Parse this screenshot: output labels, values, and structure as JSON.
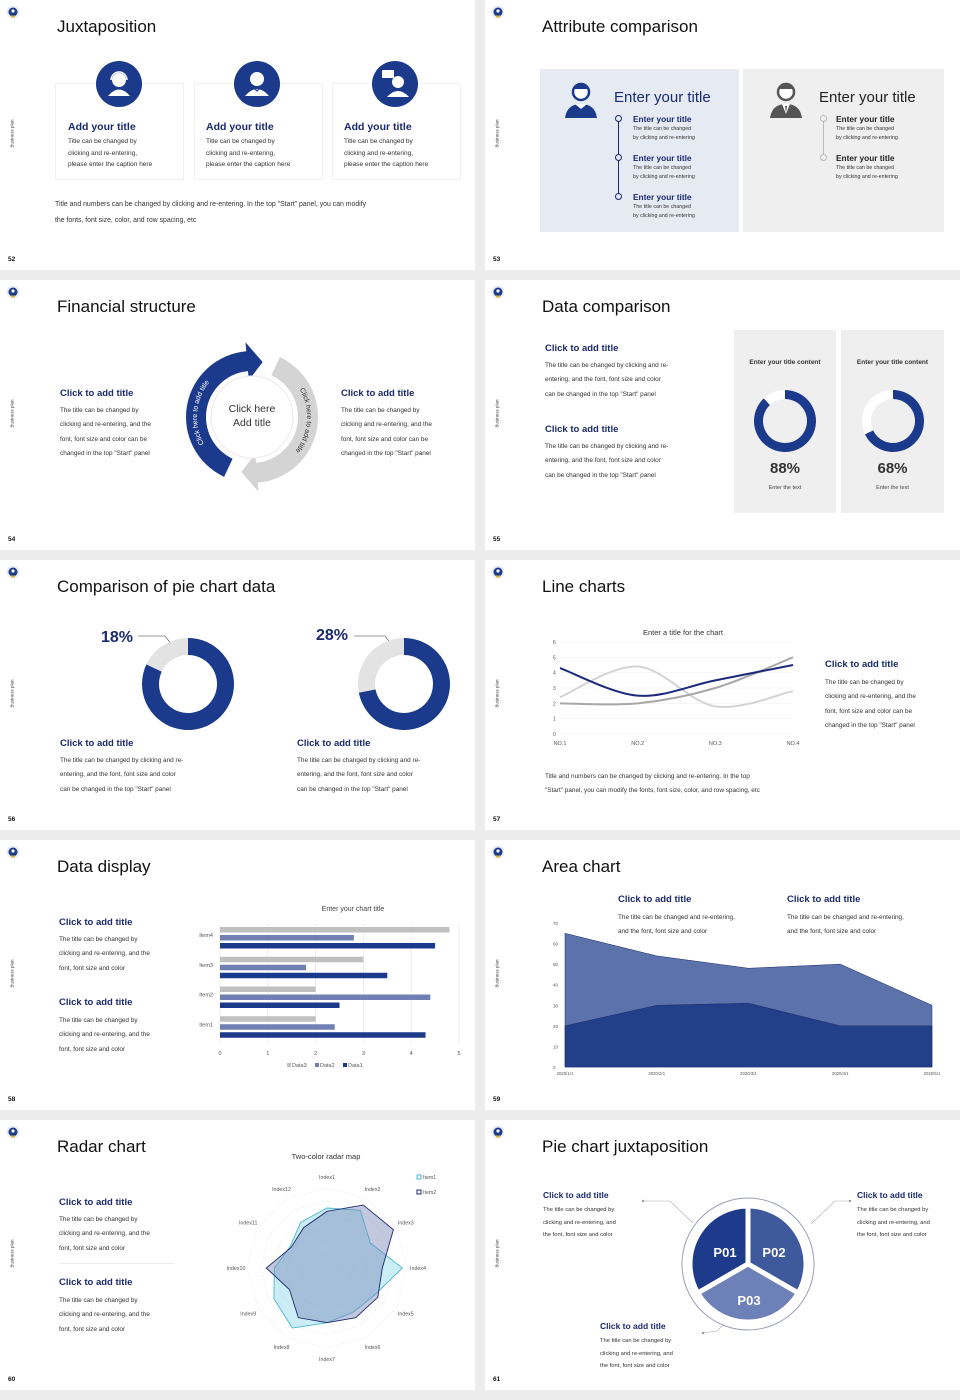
{
  "common": {
    "side_label": "Business plan"
  },
  "colors": {
    "navy": "#1b3a8c",
    "title_navy": "#1a2a6c",
    "mid_blue": "#4a63a3",
    "light_blue": "#7080b5",
    "gray": "#c8c8c8",
    "panel_blue": "#e6eaf3",
    "panel_gray": "#efefef"
  },
  "slides": {
    "s52": {
      "page": "52",
      "title": "Juxtaposition",
      "cards": [
        {
          "icon": "customer-service-icon",
          "title": "Add your title",
          "body": "Title can be changed by\nclicking and re-entering,\nplease enter the caption here"
        },
        {
          "icon": "staff-icon",
          "title": "Add your title",
          "body": "Title can be changed by\nclicking and re-entering,\nplease enter the caption here"
        },
        {
          "icon": "consultant-chat-icon",
          "title": "Add your title",
          "body": "Title can be changed by\nclicking and re-entering,\nplease enter the caption here"
        }
      ],
      "note": "Title and numbers can be changed by clicking and re-entering. In the top \"Start\" panel, you can modify\nthe fonts, font size, color, and row spacing, etc"
    },
    "s53": {
      "page": "53",
      "title": "Attribute comparison",
      "left": {
        "heading": "Enter your title",
        "items": [
          {
            "title": "Enter your title",
            "body": "The title can be changed\nby clicking and re-entering"
          },
          {
            "title": "Enter your title",
            "body": "The title can be changed\nby clicking and re-entering"
          },
          {
            "title": "Enter your title",
            "body": "The title can be changed\nby clicking and re-entering"
          }
        ]
      },
      "right": {
        "heading": "Enter your title",
        "items": [
          {
            "title": "Enter your title",
            "body": "The title can be changed\nby clicking and re-entering"
          },
          {
            "title": "Enter your title",
            "body": "The title can be changed\nby clicking and re-entering"
          }
        ]
      }
    },
    "s54": {
      "page": "54",
      "title": "Financial structure",
      "left": {
        "title": "Click to add title",
        "body": "The title can be changed by\nclicking and re-entering, and the\nfont, font size and color can be\nchanged in the top \"Start\" panel"
      },
      "right": {
        "title": "Click to add title",
        "body": "The title can be changed by\nclicking and re-entering, and the\nfont, font size and color can be\nchanged in the top \"Start\" panel"
      },
      "center": "Click here\nAdd title",
      "arc_left": "Click here to add title",
      "arc_right": "Click here to add title"
    },
    "s55": {
      "page": "55",
      "title": "Data comparison",
      "blocks": [
        {
          "title": "Click to add title",
          "body": "The title can be changed by clicking and re-\nentering, and the font, font size and color\ncan be changed in the top \"Start\" panel"
        },
        {
          "title": "Click to add title",
          "body": "The title can be changed by clicking and re-\nentering, and the font, font size and color\ncan be changed in the top \"Start\" panel"
        }
      ],
      "panels": [
        {
          "heading": "Enter your title content",
          "pct": "88%",
          "caption": "Enter the text"
        },
        {
          "heading": "Enter your title content",
          "pct": "68%",
          "caption": "Enter the text"
        }
      ]
    },
    "s56": {
      "page": "56",
      "title": "Comparison of pie chart data",
      "items": [
        {
          "pct": "18%",
          "title": "Click to add title",
          "body": "The title can be changed by clicking and re-\nentering, and the font, font size and color\ncan be changed in the top \"Start\" panel"
        },
        {
          "pct": "28%",
          "title": "Click to add title",
          "body": "The title can be changed by clicking and re-\nentering, and the font, font size and color\ncan be changed in the top \"Start\" panel"
        }
      ]
    },
    "s57": {
      "page": "57",
      "title": "Line charts",
      "side": {
        "title": "Click to add title",
        "body": "The title can be changed by\nclicking and re-entering, and the\nfont, font size and color can be\nchanged in the top \"Start\" panel"
      },
      "note": "Title and numbers can be changed by clicking and re-entering. In the top\n\"Start\" panel, you can modify the fonts, font size, color, and row spacing, etc"
    },
    "s58": {
      "page": "58",
      "title": "Data display",
      "blocks": [
        {
          "title": "Click to add title",
          "body": "The title can be changed by\nclicking and re-entering, and the\nfont, font size and color"
        },
        {
          "title": "Click to add title",
          "body": "The title can be changed by\nclicking and re-entering, and the\nfont, font size and color"
        }
      ]
    },
    "s59": {
      "page": "59",
      "title": "Area chart",
      "blocks": [
        {
          "title": "Click to add title",
          "body": "The title can be changed and re-entering,\nand the font, font size and color"
        },
        {
          "title": "Click to add title",
          "body": "The title can be changed and re-entering,\nand the font, font size and color"
        }
      ]
    },
    "s60": {
      "page": "60",
      "title": "Radar chart",
      "blocks": [
        {
          "title": "Click to add title",
          "body": "The title can be changed by\nclicking and re-entering, and the\nfont, font size and color"
        },
        {
          "title": "Click to add title",
          "body": "The title can be changed by\nclicking and re-entering, and the\nfont, font size and color"
        }
      ]
    },
    "s61": {
      "page": "61",
      "title": "Pie chart juxtaposition",
      "segments": [
        "P01",
        "P02",
        "P03"
      ],
      "blocks": [
        {
          "title": "Click to add title",
          "body": "The title can be changed by\nclicking and re-entering, and\nthe font, font size and color"
        },
        {
          "title": "Click to add title",
          "body": "The title can be changed by\nclicking and re-entering, and\nthe font, font size and color"
        },
        {
          "title": "Click to add title",
          "body": "The title can be changed by\nclicking and re-entering, and\nthe font, font size and color"
        }
      ]
    }
  },
  "chart_data": [
    {
      "type": "line",
      "title": "Enter a title for the chart",
      "categories": [
        "NO.1",
        "NO.2",
        "NO.3",
        "NO.4"
      ],
      "ylim": [
        0,
        6
      ],
      "yticks": [
        0,
        1,
        2,
        3,
        4,
        5,
        6
      ],
      "grid": true,
      "smooth": true,
      "series": [
        {
          "values": [
            4.3,
            2.5,
            3.5,
            4.5
          ],
          "color": "#1b2a7c"
        },
        {
          "values": [
            2.4,
            4.4,
            1.8,
            2.8
          ],
          "color": "#d4d4d4"
        },
        {
          "values": [
            2.0,
            2.0,
            3.0,
            5.0
          ],
          "color": "#a8a8a8"
        }
      ]
    },
    {
      "type": "bar",
      "orientation": "horizontal",
      "title": "Enter your chart title",
      "categories": [
        "Item1",
        "Item2",
        "Item3",
        "Item4"
      ],
      "xlim": [
        0,
        5
      ],
      "xticks": [
        0,
        1,
        2,
        3,
        4,
        5
      ],
      "grid": true,
      "legend": "bottom",
      "series": [
        {
          "name": "Data1",
          "values": [
            4.3,
            2.5,
            3.5,
            4.5
          ],
          "color": "#1b3a8c"
        },
        {
          "name": "Data2",
          "values": [
            2.4,
            4.4,
            1.8,
            2.8
          ],
          "color": "#7080b5"
        },
        {
          "name": "Data3",
          "values": [
            2.0,
            2.0,
            3.0,
            4.8
          ],
          "color": "#c0c0c0"
        }
      ]
    },
    {
      "type": "area",
      "categories": [
        "2020/1/1",
        "2020/2/1",
        "2020/3/1",
        "2020/4/1",
        "2020/5/1"
      ],
      "ylim": [
        0,
        70
      ],
      "yticks": [
        0,
        10,
        20,
        30,
        40,
        50,
        60,
        70
      ],
      "series": [
        {
          "values": [
            65,
            54,
            48,
            50,
            30
          ],
          "color": "#5b73aa"
        },
        {
          "values": [
            20,
            30,
            31,
            20,
            20
          ],
          "color": "#223f8a"
        }
      ]
    },
    {
      "type": "radar",
      "title": "Two-color radar map",
      "legend": "top-right",
      "categories": [
        "Index1",
        "Index2",
        "Index3",
        "Index4",
        "Index5",
        "Index6",
        "Index7",
        "Index8",
        "Index9",
        "Index10",
        "Index11",
        "Index12"
      ],
      "rmax": 12,
      "series": [
        {
          "name": "Item1",
          "values": [
            9,
            10,
            7.5,
            11.3,
            8.2,
            7.7,
            8.2,
            10.4,
            9.2,
            7.9,
            6.4,
            7.9
          ],
          "color": "#4bb8d0"
        },
        {
          "name": "Item2",
          "values": [
            8.5,
            10.9,
            11.5,
            8.3,
            8.8,
            8.6,
            8.2,
            8.6,
            6.5,
            9.1,
            6.2,
            7
          ],
          "color": "#1b2a6c"
        }
      ]
    },
    {
      "type": "pie",
      "style": "donut",
      "values": [
        88,
        68
      ]
    },
    {
      "type": "pie",
      "style": "donut",
      "values": [
        18,
        28
      ]
    }
  ]
}
